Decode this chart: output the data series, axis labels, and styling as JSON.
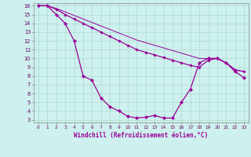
{
  "xlabel": "Windchill (Refroidissement éolien,°C)",
  "bg_color": "#cef0ee",
  "line_color": "#990099",
  "grid_color": "#aaddcc",
  "xlim": [
    -0.5,
    23.5
  ],
  "ylim": [
    2.7,
    16.3
  ],
  "yticks": [
    3,
    4,
    5,
    6,
    7,
    8,
    9,
    10,
    11,
    12,
    13,
    14,
    15,
    16
  ],
  "xticks": [
    0,
    1,
    2,
    3,
    4,
    5,
    6,
    7,
    8,
    9,
    10,
    11,
    12,
    13,
    14,
    15,
    16,
    17,
    18,
    19,
    20,
    21,
    22,
    23
  ],
  "series1_x": [
    0,
    1,
    2,
    3,
    4,
    5,
    6,
    7,
    8,
    9,
    10,
    11,
    12,
    13,
    14,
    15,
    16,
    17,
    18,
    19,
    20,
    21,
    22,
    23
  ],
  "series1_y": [
    16,
    16,
    15,
    14,
    12,
    8,
    7.5,
    5.5,
    4.5,
    4.0,
    3.4,
    3.2,
    3.3,
    3.5,
    3.2,
    3.2,
    5.0,
    6.5,
    9.5,
    10.0,
    10.0,
    9.5,
    8.5,
    7.8
  ],
  "series2_x": [
    0,
    1,
    2,
    3,
    4,
    5,
    6,
    7,
    8,
    9,
    10,
    11,
    12,
    13,
    14,
    15,
    16,
    17,
    18,
    19,
    20,
    21,
    22,
    23
  ],
  "series2_y": [
    16,
    16,
    15.6,
    15.0,
    14.5,
    14.0,
    13.5,
    13.0,
    12.5,
    12.0,
    11.5,
    11.0,
    10.7,
    10.4,
    10.1,
    9.8,
    9.5,
    9.2,
    9.0,
    9.8,
    10.0,
    9.5,
    8.7,
    8.5
  ],
  "series3_x": [
    0,
    1,
    2,
    3,
    4,
    5,
    6,
    7,
    8,
    9,
    10,
    11,
    12,
    13,
    14,
    15,
    16,
    17,
    18,
    19,
    20,
    21,
    22,
    23
  ],
  "series3_y": [
    16,
    16,
    15.7,
    15.3,
    14.9,
    14.5,
    14.1,
    13.7,
    13.3,
    12.9,
    12.5,
    12.1,
    11.8,
    11.5,
    11.2,
    10.9,
    10.6,
    10.3,
    10.0,
    10.0,
    10.0,
    9.5,
    8.7,
    8.5
  ]
}
